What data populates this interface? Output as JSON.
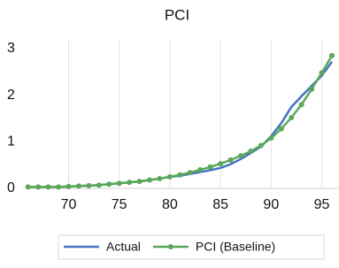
{
  "chart_data": {
    "type": "line",
    "title": "PCI",
    "x": [
      66,
      67,
      68,
      69,
      70,
      71,
      72,
      73,
      74,
      75,
      76,
      77,
      78,
      79,
      80,
      81,
      82,
      83,
      84,
      85,
      86,
      87,
      88,
      89,
      90,
      91,
      92,
      93,
      94,
      95,
      96
    ],
    "series": [
      {
        "name": "Actual",
        "color": "#4472c4",
        "marker": false,
        "values": [
          0.03,
          0.03,
          0.03,
          0.03,
          0.04,
          0.05,
          0.06,
          0.07,
          0.09,
          0.11,
          0.13,
          0.15,
          0.18,
          0.21,
          0.25,
          0.27,
          0.31,
          0.35,
          0.39,
          0.44,
          0.52,
          0.63,
          0.76,
          0.9,
          1.12,
          1.4,
          1.75,
          1.98,
          2.2,
          2.42,
          2.72
        ]
      },
      {
        "name": "PCI (Baseline)",
        "color": "#5aa85a",
        "marker": true,
        "values": [
          0.03,
          0.03,
          0.03,
          0.03,
          0.04,
          0.05,
          0.06,
          0.07,
          0.09,
          0.11,
          0.13,
          0.15,
          0.18,
          0.21,
          0.25,
          0.29,
          0.34,
          0.4,
          0.46,
          0.53,
          0.61,
          0.7,
          0.8,
          0.92,
          1.08,
          1.28,
          1.52,
          1.8,
          2.13,
          2.48,
          2.85
        ]
      }
    ],
    "xlim": [
      66.2,
      96.7
    ],
    "xticks": [
      70,
      75,
      80,
      85,
      90,
      95
    ],
    "ylim": [
      0,
      3
    ],
    "yticks": [
      0,
      1,
      2,
      3
    ],
    "xgrid": true,
    "legend": "bottom"
  }
}
